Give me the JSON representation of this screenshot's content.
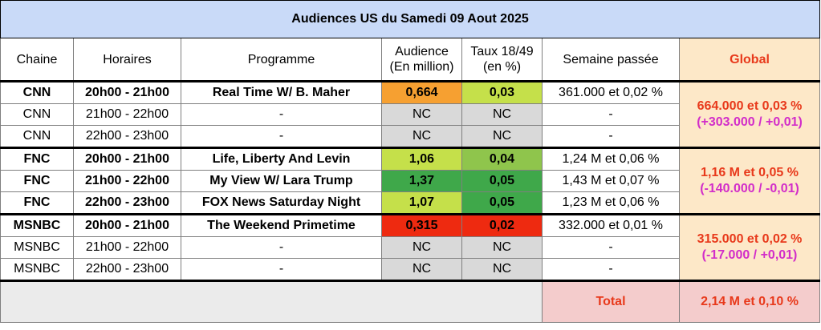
{
  "title": "Audiences US du Samedi 09 Aout 2025",
  "headers": {
    "chaine": "Chaine",
    "horaires": "Horaires",
    "programme": "Programme",
    "audience_1": "Audience",
    "audience_2": "(En million)",
    "taux_1": "Taux 18/49",
    "taux_2": "(en %)",
    "semaine": "Semaine passée",
    "global": "Global"
  },
  "colors": {
    "title_bg": "#c9daf8",
    "global_bg": "#fde8c8",
    "global_text": "#e8391b",
    "global_sub": "#d22dc9",
    "total_bg": "#f4cccc",
    "nc_bg": "#d9d9d9",
    "orange": "#f6a031",
    "lime": "#c5e04a",
    "green_mid": "#8fc54c",
    "green_dark": "#3fa84a",
    "red": "#ee2a10"
  },
  "groups": [
    {
      "global_main": "664.000 et 0,03 %",
      "global_sub": "(+303.000 / +0,01)",
      "rows": [
        {
          "chaine": "CNN",
          "horaires": "20h00 - 21h00",
          "programme": "Real Time W/ B. Maher",
          "audience": "0,664",
          "taux": "0,03",
          "semaine": "361.000 et 0,02 %",
          "bold": true,
          "aud_color": "#f6a031",
          "taux_color": "#c5e04a"
        },
        {
          "chaine": "CNN",
          "horaires": "21h00 - 22h00",
          "programme": "-",
          "audience": "NC",
          "taux": "NC",
          "semaine": "-",
          "bold": false,
          "aud_color": "#d9d9d9",
          "taux_color": "#d9d9d9"
        },
        {
          "chaine": "CNN",
          "horaires": "22h00 - 23h00",
          "programme": "-",
          "audience": "NC",
          "taux": "NC",
          "semaine": "-",
          "bold": false,
          "aud_color": "#d9d9d9",
          "taux_color": "#d9d9d9"
        }
      ]
    },
    {
      "global_main": "1,16 M et 0,05 %",
      "global_sub": "(-140.000 / -0,01)",
      "rows": [
        {
          "chaine": "FNC",
          "horaires": "20h00 - 21h00",
          "programme": "Life, Liberty And Levin",
          "audience": "1,06",
          "taux": "0,04",
          "semaine": "1,24 M et 0,06 %",
          "bold": true,
          "aud_color": "#c5e04a",
          "taux_color": "#8fc54c"
        },
        {
          "chaine": "FNC",
          "horaires": "21h00 - 22h00",
          "programme": "My View W/ Lara Trump",
          "audience": "1,37",
          "taux": "0,05",
          "semaine": "1,43 M et 0,07 %",
          "bold": true,
          "aud_color": "#3fa84a",
          "taux_color": "#3fa84a"
        },
        {
          "chaine": "FNC",
          "horaires": "22h00 - 23h00",
          "programme": "FOX News Saturday Night",
          "audience": "1,07",
          "taux": "0,05",
          "semaine": "1,23 M et 0,06 %",
          "bold": true,
          "aud_color": "#c5e04a",
          "taux_color": "#3fa84a"
        }
      ]
    },
    {
      "global_main": "315.000 et 0,02 %",
      "global_sub": "(-17.000 / +0,01)",
      "rows": [
        {
          "chaine": "MSNBC",
          "horaires": "20h00 - 21h00",
          "programme": "The Weekend Primetime",
          "audience": "0,315",
          "taux": "0,02",
          "semaine": "332.000 et 0,01 %",
          "bold": true,
          "aud_color": "#ee2a10",
          "taux_color": "#ee2a10"
        },
        {
          "chaine": "MSNBC",
          "horaires": "21h00 - 22h00",
          "programme": "-",
          "audience": "NC",
          "taux": "NC",
          "semaine": "-",
          "bold": false,
          "aud_color": "#d9d9d9",
          "taux_color": "#d9d9d9"
        },
        {
          "chaine": "MSNBC",
          "horaires": "22h00 - 23h00",
          "programme": "-",
          "audience": "NC",
          "taux": "NC",
          "semaine": "-",
          "bold": false,
          "aud_color": "#d9d9d9",
          "taux_color": "#d9d9d9"
        }
      ]
    }
  ],
  "footer": {
    "total_label": "Total",
    "total_value": "2,14 M et 0,10 %"
  }
}
